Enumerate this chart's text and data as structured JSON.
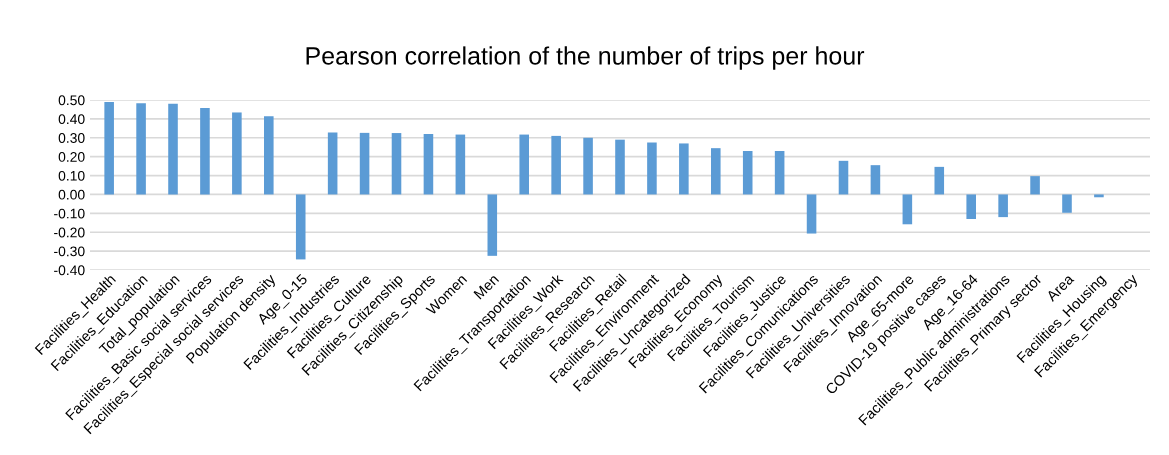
{
  "chart_data": {
    "type": "bar",
    "title": "Pearson correlation of the number of trips per hour",
    "categories": [
      "Facilities_Health",
      "Facilities_Education",
      "Total_population",
      "Facilities_Basic social services",
      "Facilities_Especial social services",
      "Population density",
      "Age_0-15",
      "Facilities_Industries",
      "Facilities_Culture",
      "Facilities_Citizenship",
      "Facilities_Sports",
      "Women",
      "Men",
      "Facilities_Transportation",
      "Facilities_Work",
      "Facilities_Research",
      "Facilities_Retail",
      "Facilities_Environment",
      "Facilities_Uncategorized",
      "Facilities_Economy",
      "Facilities_Tourism",
      "Facilities_Justice",
      "Facilities_Comunications",
      "Facilities_Universities",
      "Facilities_Innovation",
      "Age_65-more",
      "COVID-19 positive cases",
      "Age_16-64",
      "Facilities_Public administrations",
      "Facilities_Primary sector",
      "Area",
      "Facilities_Housing",
      "Facilities_Emergency"
    ],
    "values": [
      0.49,
      0.483,
      0.48,
      0.458,
      0.434,
      0.414,
      -0.344,
      0.328,
      0.326,
      0.325,
      0.32,
      0.317,
      -0.325,
      0.317,
      0.31,
      0.3,
      0.29,
      0.275,
      0.27,
      0.245,
      0.23,
      0.23,
      -0.207,
      0.178,
      0.155,
      -0.158,
      0.146,
      -0.13,
      -0.12,
      0.097,
      -0.097,
      -0.015,
      0
    ],
    "color": "#5b9bd5",
    "ylim": [
      -0.4,
      0.5
    ],
    "yticks": [
      {
        "value": -0.4,
        "label": "-0.40"
      },
      {
        "value": -0.3,
        "label": "-0.30"
      },
      {
        "value": -0.2,
        "label": "-0.20"
      },
      {
        "value": -0.1,
        "label": "-0.10"
      },
      {
        "value": 0,
        "label": "0.00"
      },
      {
        "value": 0.1,
        "label": "0.10"
      },
      {
        "value": 0.2,
        "label": "0.20"
      },
      {
        "value": 0.3,
        "label": "0.30"
      },
      {
        "value": 0.4,
        "label": "0.40"
      },
      {
        "value": 0.5,
        "label": "0.50"
      }
    ],
    "grid": "y",
    "legend": false
  }
}
